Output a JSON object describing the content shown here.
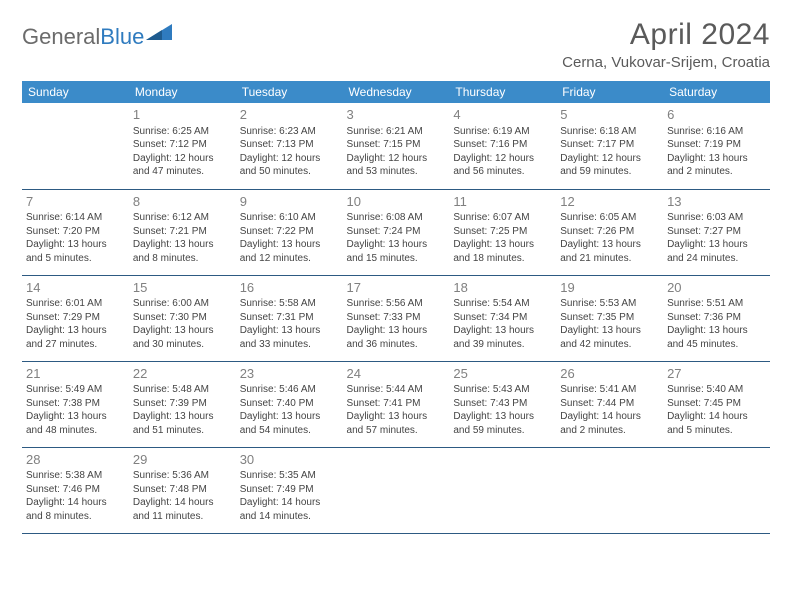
{
  "logo": {
    "word1": "General",
    "word2": "Blue"
  },
  "title": "April 2024",
  "location": "Cerna, Vukovar-Srijem, Croatia",
  "colors": {
    "header_bg": "#3b8bc9",
    "header_text": "#ffffff",
    "row_border": "#2d5a82",
    "daynum": "#808080",
    "body_text": "#444444",
    "title_text": "#5a5a5a",
    "logo_gray": "#6b6b6b",
    "logo_blue": "#2f7bbf"
  },
  "weekdays": [
    "Sunday",
    "Monday",
    "Tuesday",
    "Wednesday",
    "Thursday",
    "Friday",
    "Saturday"
  ],
  "weeks": [
    [
      null,
      {
        "n": "1",
        "sr": "6:25 AM",
        "ss": "7:12 PM",
        "dl": "12 hours and 47 minutes."
      },
      {
        "n": "2",
        "sr": "6:23 AM",
        "ss": "7:13 PM",
        "dl": "12 hours and 50 minutes."
      },
      {
        "n": "3",
        "sr": "6:21 AM",
        "ss": "7:15 PM",
        "dl": "12 hours and 53 minutes."
      },
      {
        "n": "4",
        "sr": "6:19 AM",
        "ss": "7:16 PM",
        "dl": "12 hours and 56 minutes."
      },
      {
        "n": "5",
        "sr": "6:18 AM",
        "ss": "7:17 PM",
        "dl": "12 hours and 59 minutes."
      },
      {
        "n": "6",
        "sr": "6:16 AM",
        "ss": "7:19 PM",
        "dl": "13 hours and 2 minutes."
      }
    ],
    [
      {
        "n": "7",
        "sr": "6:14 AM",
        "ss": "7:20 PM",
        "dl": "13 hours and 5 minutes."
      },
      {
        "n": "8",
        "sr": "6:12 AM",
        "ss": "7:21 PM",
        "dl": "13 hours and 8 minutes."
      },
      {
        "n": "9",
        "sr": "6:10 AM",
        "ss": "7:22 PM",
        "dl": "13 hours and 12 minutes."
      },
      {
        "n": "10",
        "sr": "6:08 AM",
        "ss": "7:24 PM",
        "dl": "13 hours and 15 minutes."
      },
      {
        "n": "11",
        "sr": "6:07 AM",
        "ss": "7:25 PM",
        "dl": "13 hours and 18 minutes."
      },
      {
        "n": "12",
        "sr": "6:05 AM",
        "ss": "7:26 PM",
        "dl": "13 hours and 21 minutes."
      },
      {
        "n": "13",
        "sr": "6:03 AM",
        "ss": "7:27 PM",
        "dl": "13 hours and 24 minutes."
      }
    ],
    [
      {
        "n": "14",
        "sr": "6:01 AM",
        "ss": "7:29 PM",
        "dl": "13 hours and 27 minutes."
      },
      {
        "n": "15",
        "sr": "6:00 AM",
        "ss": "7:30 PM",
        "dl": "13 hours and 30 minutes."
      },
      {
        "n": "16",
        "sr": "5:58 AM",
        "ss": "7:31 PM",
        "dl": "13 hours and 33 minutes."
      },
      {
        "n": "17",
        "sr": "5:56 AM",
        "ss": "7:33 PM",
        "dl": "13 hours and 36 minutes."
      },
      {
        "n": "18",
        "sr": "5:54 AM",
        "ss": "7:34 PM",
        "dl": "13 hours and 39 minutes."
      },
      {
        "n": "19",
        "sr": "5:53 AM",
        "ss": "7:35 PM",
        "dl": "13 hours and 42 minutes."
      },
      {
        "n": "20",
        "sr": "5:51 AM",
        "ss": "7:36 PM",
        "dl": "13 hours and 45 minutes."
      }
    ],
    [
      {
        "n": "21",
        "sr": "5:49 AM",
        "ss": "7:38 PM",
        "dl": "13 hours and 48 minutes."
      },
      {
        "n": "22",
        "sr": "5:48 AM",
        "ss": "7:39 PM",
        "dl": "13 hours and 51 minutes."
      },
      {
        "n": "23",
        "sr": "5:46 AM",
        "ss": "7:40 PM",
        "dl": "13 hours and 54 minutes."
      },
      {
        "n": "24",
        "sr": "5:44 AM",
        "ss": "7:41 PM",
        "dl": "13 hours and 57 minutes."
      },
      {
        "n": "25",
        "sr": "5:43 AM",
        "ss": "7:43 PM",
        "dl": "13 hours and 59 minutes."
      },
      {
        "n": "26",
        "sr": "5:41 AM",
        "ss": "7:44 PM",
        "dl": "14 hours and 2 minutes."
      },
      {
        "n": "27",
        "sr": "5:40 AM",
        "ss": "7:45 PM",
        "dl": "14 hours and 5 minutes."
      }
    ],
    [
      {
        "n": "28",
        "sr": "5:38 AM",
        "ss": "7:46 PM",
        "dl": "14 hours and 8 minutes."
      },
      {
        "n": "29",
        "sr": "5:36 AM",
        "ss": "7:48 PM",
        "dl": "14 hours and 11 minutes."
      },
      {
        "n": "30",
        "sr": "5:35 AM",
        "ss": "7:49 PM",
        "dl": "14 hours and 14 minutes."
      },
      null,
      null,
      null,
      null
    ]
  ],
  "labels": {
    "sunrise": "Sunrise: ",
    "sunset": "Sunset: ",
    "daylight": "Daylight: "
  }
}
